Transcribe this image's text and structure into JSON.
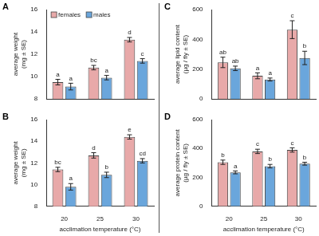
{
  "chart_data": [
    {
      "type": "bar",
      "title": "A",
      "ylabel": "average weight (mg ± SE)",
      "categories": [
        "20",
        "25",
        "30"
      ],
      "series": [
        {
          "name": "females",
          "color": "#e8a9a9",
          "values": [
            9.5,
            10.8,
            13.3
          ],
          "errors": [
            0.25,
            0.2,
            0.2
          ],
          "annotations": [
            "a",
            "bc",
            "d"
          ]
        },
        {
          "name": "males",
          "color": "#6aa6dc",
          "values": [
            9.1,
            9.9,
            11.4
          ],
          "errors": [
            0.3,
            0.2,
            0.2
          ],
          "annotations": [
            "a",
            "a",
            "c"
          ]
        }
      ],
      "ylim": [
        8,
        16
      ],
      "yticks": [
        8,
        10,
        12,
        14,
        16
      ],
      "grid": false,
      "legend": "top-left",
      "tick_labels": "y"
    },
    {
      "type": "bar",
      "title": "B",
      "ylabel": "average weight (mg ± SE)",
      "xlabel": "acclimation temperature (°C)",
      "categories": [
        "20",
        "25",
        "30"
      ],
      "series": [
        {
          "color": "#e8a9a9",
          "values": [
            11.4,
            12.7,
            14.4
          ],
          "errors": [
            0.2,
            0.25,
            0.2
          ],
          "annotations": [
            "bc",
            "d",
            "e"
          ]
        },
        {
          "color": "#6aa6dc",
          "values": [
            9.8,
            10.9,
            12.2
          ],
          "errors": [
            0.3,
            0.25,
            0.2
          ],
          "annotations": [
            "a",
            "b",
            "cd"
          ]
        }
      ],
      "ylim": [
        8,
        16
      ],
      "yticks": [
        8,
        10,
        12,
        14,
        16
      ],
      "grid": false
    },
    {
      "type": "bar",
      "title": "C",
      "ylabel": "average lipid content (µg / fly ± SE)",
      "categories": [
        "20",
        "25",
        "30"
      ],
      "series": [
        {
          "color": "#e8a9a9",
          "values": [
            245,
            155,
            465
          ],
          "errors": [
            35,
            20,
            60
          ],
          "annotations": [
            "ab",
            "a",
            "c"
          ]
        },
        {
          "color": "#6aa6dc",
          "values": [
            205,
            130,
            275
          ],
          "errors": [
            15,
            10,
            45
          ],
          "annotations": [
            "ab",
            "a",
            "b"
          ]
        }
      ],
      "ylim": [
        0,
        600
      ],
      "yticks": [
        0,
        200,
        400,
        600
      ],
      "grid": false,
      "tick_labels": "y"
    },
    {
      "type": "bar",
      "title": "D",
      "ylabel": "average protein content (µg / fly ± SE)",
      "xlabel": "acclimation temperature (°C)",
      "categories": [
        "20",
        "25",
        "30"
      ],
      "series": [
        {
          "color": "#e8a9a9",
          "values": [
            305,
            380,
            390
          ],
          "errors": [
            15,
            15,
            15
          ],
          "annotations": [
            "b",
            "c",
            "c"
          ]
        },
        {
          "color": "#6aa6dc",
          "values": [
            235,
            278,
            295
          ],
          "errors": [
            10,
            12,
            10
          ],
          "annotations": [
            "a",
            "b",
            "b"
          ]
        }
      ],
      "ylim": [
        0,
        600
      ],
      "yticks": [
        0,
        200,
        400,
        600
      ],
      "grid": false
    }
  ]
}
